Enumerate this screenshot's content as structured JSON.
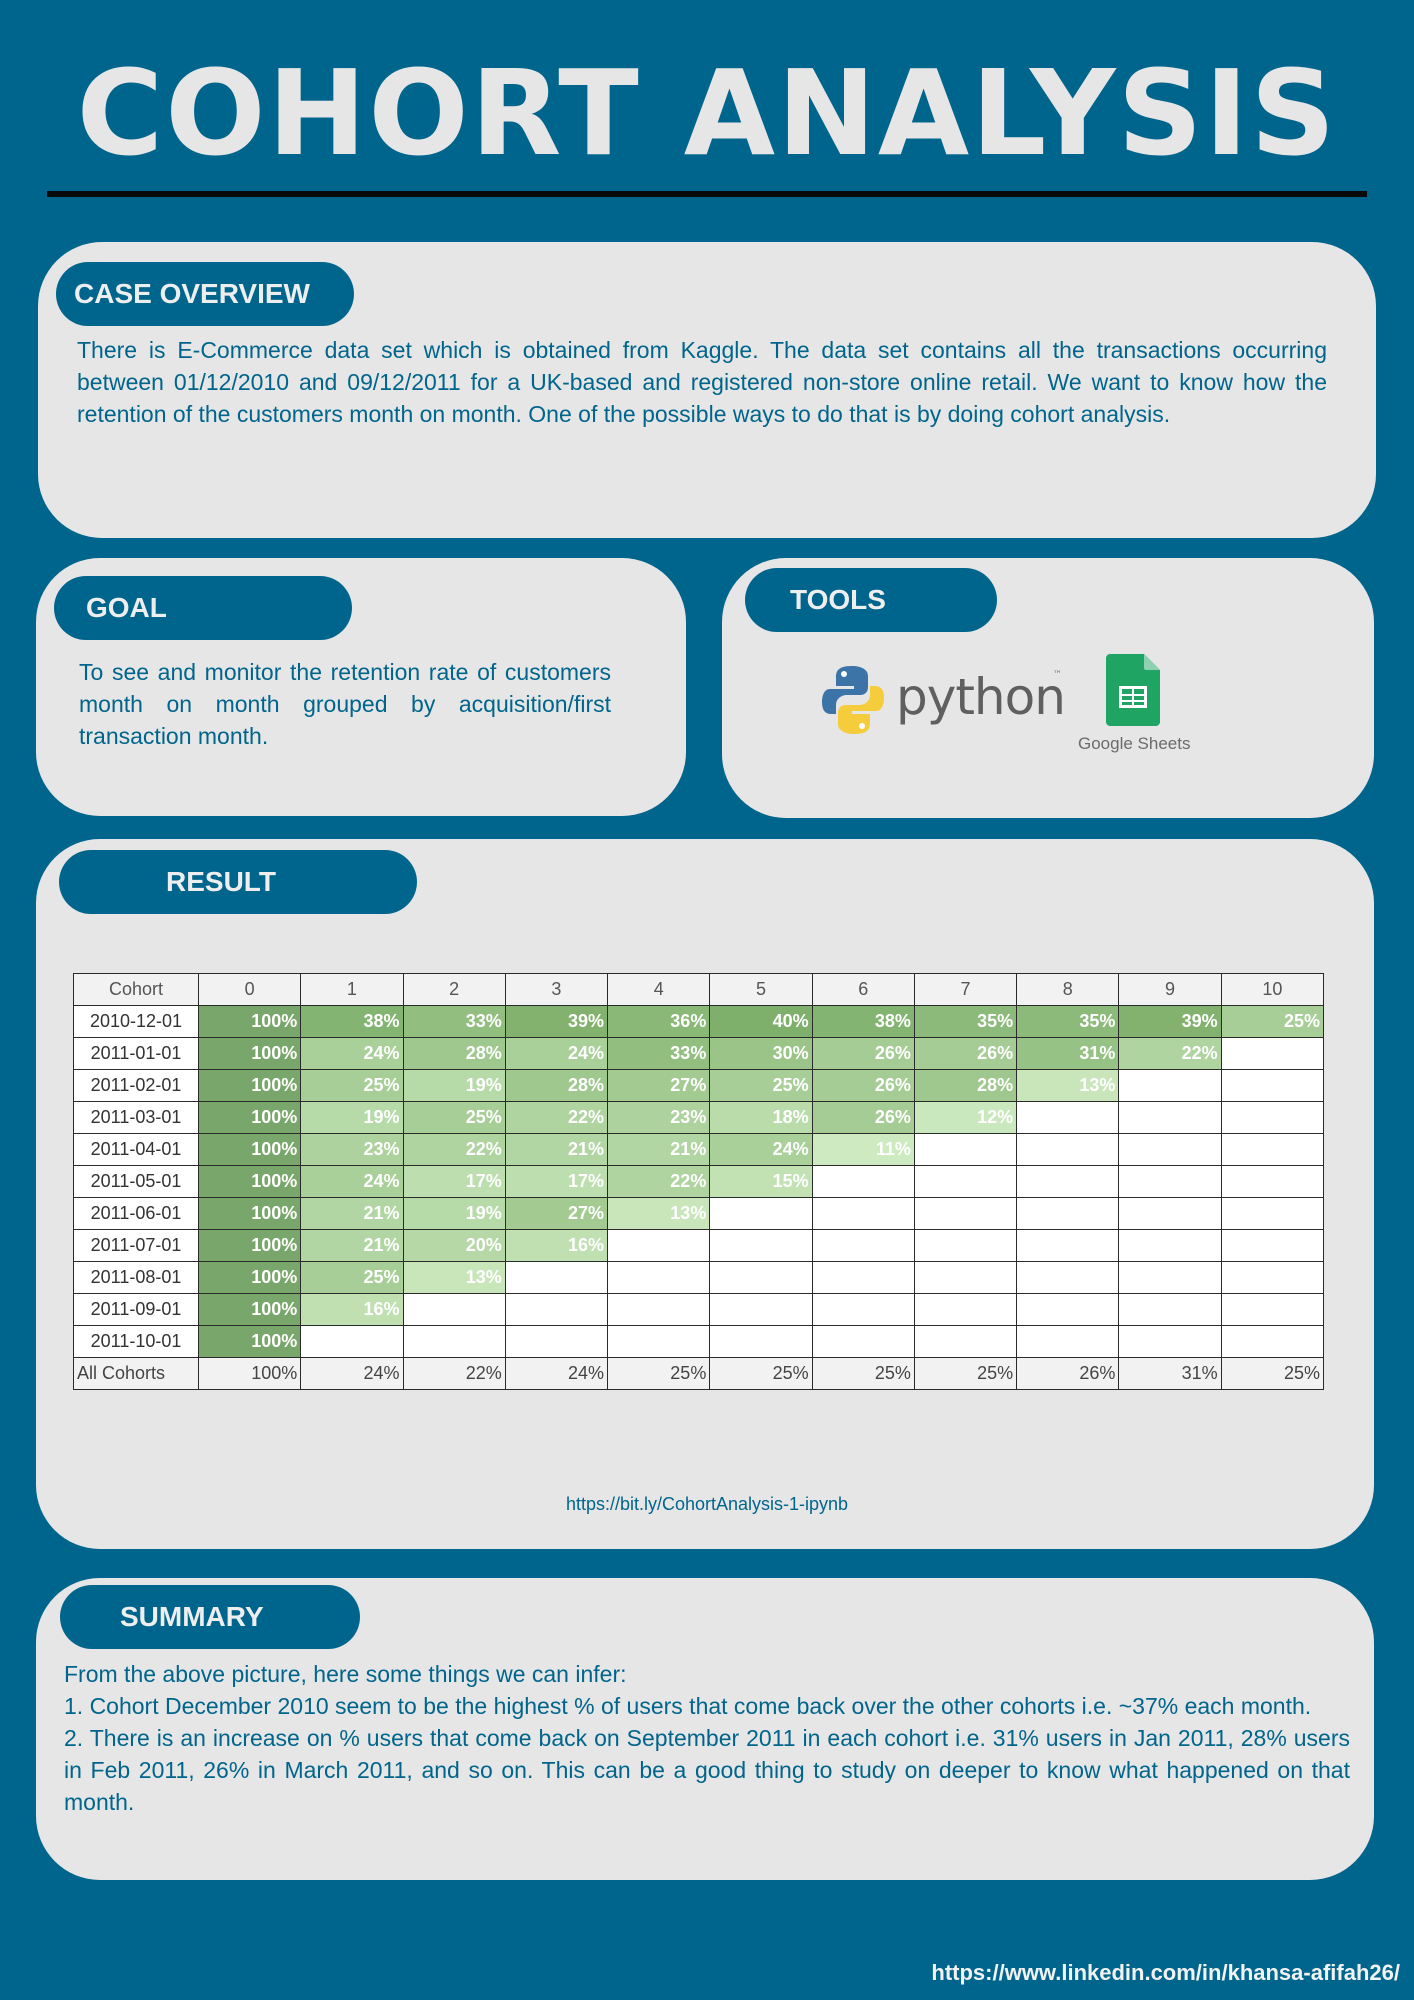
{
  "title": "COHORT ANALYSIS",
  "case_overview": {
    "heading": "CASE OVERVIEW",
    "text": "There is E-Commerce data set which is obtained from Kaggle. The data set contains all the transactions occurring between 01/12/2010 and 09/12/2011 for a UK-based and registered non-store online retail. We want to know how the retention of the customers month on month. One of the possible ways to do that is by doing cohort analysis."
  },
  "goal": {
    "heading": "GOAL",
    "text": "To see and monitor the retention rate of customers month on month grouped by acquisition/first transaction month."
  },
  "tools": {
    "heading": "TOOLS",
    "python_label": "python",
    "python_tm": "™",
    "sheets_label": "Google Sheets",
    "icons": [
      "python-logo-icon",
      "google-sheets-icon"
    ]
  },
  "result": {
    "heading": "RESULT",
    "link": "https://bit.ly/CohortAnalysis-1-ipynb"
  },
  "chart_data": {
    "type": "table",
    "columns": [
      "Cohort",
      "0",
      "1",
      "2",
      "3",
      "4",
      "5",
      "6",
      "7",
      "8",
      "9",
      "10"
    ],
    "rows": [
      {
        "cohort": "2010-12-01",
        "values": [
          "100%",
          "38%",
          "33%",
          "39%",
          "36%",
          "40%",
          "38%",
          "35%",
          "35%",
          "39%",
          "25%"
        ]
      },
      {
        "cohort": "2011-01-01",
        "values": [
          "100%",
          "24%",
          "28%",
          "24%",
          "33%",
          "30%",
          "26%",
          "26%",
          "31%",
          "22%"
        ]
      },
      {
        "cohort": "2011-02-01",
        "values": [
          "100%",
          "25%",
          "19%",
          "28%",
          "27%",
          "25%",
          "26%",
          "28%",
          "13%"
        ]
      },
      {
        "cohort": "2011-03-01",
        "values": [
          "100%",
          "19%",
          "25%",
          "22%",
          "23%",
          "18%",
          "26%",
          "12%"
        ]
      },
      {
        "cohort": "2011-04-01",
        "values": [
          "100%",
          "23%",
          "22%",
          "21%",
          "21%",
          "24%",
          "11%"
        ]
      },
      {
        "cohort": "2011-05-01",
        "values": [
          "100%",
          "24%",
          "17%",
          "17%",
          "22%",
          "15%"
        ]
      },
      {
        "cohort": "2011-06-01",
        "values": [
          "100%",
          "21%",
          "19%",
          "27%",
          "13%"
        ]
      },
      {
        "cohort": "2011-07-01",
        "values": [
          "100%",
          "21%",
          "20%",
          "16%"
        ]
      },
      {
        "cohort": "2011-08-01",
        "values": [
          "100%",
          "25%",
          "13%"
        ]
      },
      {
        "cohort": "2011-09-01",
        "values": [
          "100%",
          "16%"
        ]
      },
      {
        "cohort": "2011-10-01",
        "values": [
          "100%"
        ]
      }
    ],
    "total_row": {
      "label": "All Cohorts",
      "values": [
        "100%",
        "24%",
        "22%",
        "24%",
        "25%",
        "25%",
        "25%",
        "25%",
        "26%",
        "31%",
        "25%"
      ]
    },
    "color_scale": {
      "low": "#cdeac0",
      "high": "#7fb06b",
      "top": "#79a66a"
    }
  },
  "summary": {
    "heading": "SUMMARY",
    "lines": [
      "From the above picture, here some things we can infer:",
      "1. Cohort December 2010 seem to be the highest % of users that come back over the other cohorts i.e. ~37% each month.",
      "2. There is an increase on % users that come back on September 2011 in each cohort i.e. 31% users in Jan 2011, 28% users in Feb 2011, 26% in March 2011, and so on. This can be a good thing to study on deeper to know what happened on that month."
    ]
  },
  "footer_link": "https://www.linkedin.com/in/khansa-afifah26/"
}
